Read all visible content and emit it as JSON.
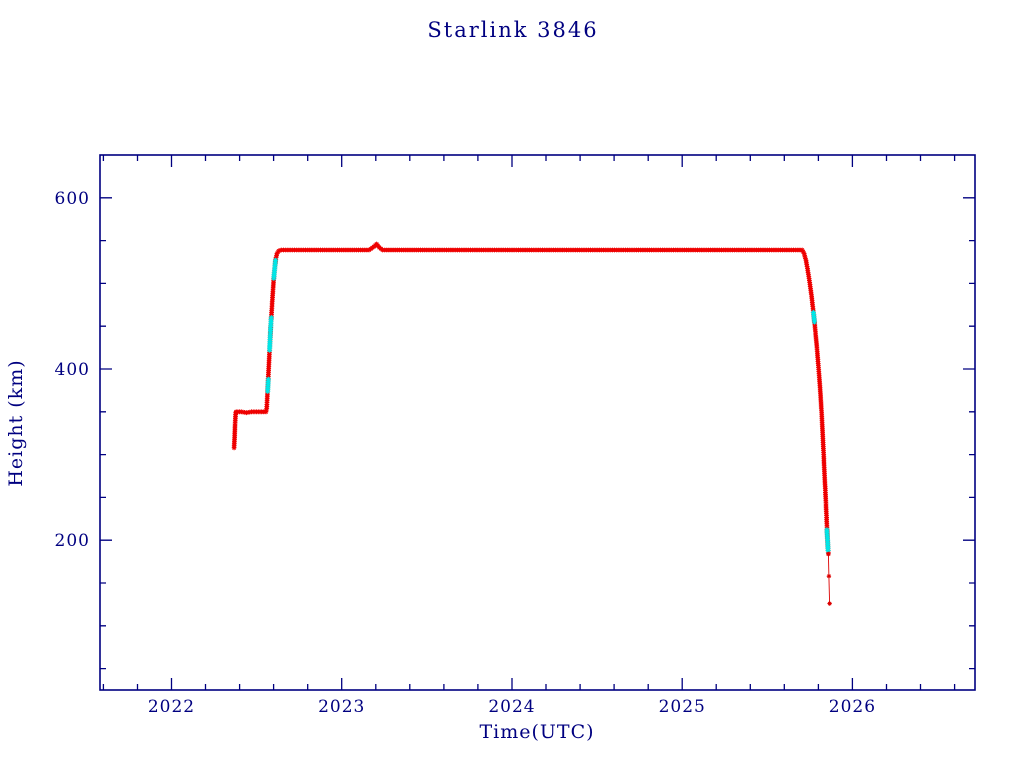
{
  "chart_data": {
    "type": "scatter",
    "title": "Starlink 3846",
    "xlabel": "Time(UTC)",
    "ylabel": "Height (km)",
    "xlim": [
      2021.58,
      2026.72
    ],
    "ylim": [
      25,
      650
    ],
    "xticks": [
      2022,
      2023,
      2024,
      2025,
      2026
    ],
    "x_minor_step": 0.2,
    "yticks": [
      200,
      400,
      600
    ],
    "y_minor_step": 50,
    "grid": false,
    "legend": "none",
    "axis_color": "#000080",
    "background_color": "#ffffff",
    "marker": "asterisk",
    "series": [
      {
        "name": "height-profile-red",
        "color": "#ee0000",
        "draw": "dense",
        "marker_size": 2.4,
        "paths": [
          [
            [
              2022.368,
              308
            ],
            [
              2022.371,
              322
            ],
            [
              2022.374,
              338
            ],
            [
              2022.377,
              349
            ],
            [
              2022.38,
              350
            ],
            [
              2022.41,
              350
            ],
            [
              2022.44,
              349
            ],
            [
              2022.47,
              350
            ],
            [
              2022.5,
              350
            ],
            [
              2022.53,
              350
            ],
            [
              2022.555,
              350
            ],
            [
              2022.559,
              354
            ],
            [
              2022.564,
              372
            ],
            [
              2022.57,
              396
            ],
            [
              2022.576,
              422
            ],
            [
              2022.582,
              446
            ],
            [
              2022.588,
              466
            ],
            [
              2022.594,
              486
            ],
            [
              2022.6,
              503
            ],
            [
              2022.606,
              517
            ],
            [
              2022.612,
              528
            ],
            [
              2022.62,
              535
            ],
            [
              2022.63,
              538
            ],
            [
              2022.645,
              539
            ],
            [
              2022.8,
              539
            ],
            [
              2023.0,
              539
            ],
            [
              2023.16,
              539
            ],
            [
              2023.19,
              543
            ],
            [
              2023.205,
              546
            ],
            [
              2023.22,
              542
            ],
            [
              2023.24,
              539
            ],
            [
              2023.5,
              539
            ],
            [
              2024.0,
              539
            ],
            [
              2024.5,
              539
            ],
            [
              2025.0,
              539
            ],
            [
              2025.5,
              539
            ],
            [
              2025.705,
              539
            ],
            [
              2025.716,
              535
            ],
            [
              2025.727,
              527
            ],
            [
              2025.738,
              515
            ],
            [
              2025.749,
              501
            ],
            [
              2025.76,
              485
            ],
            [
              2025.77,
              468
            ],
            [
              2025.78,
              449
            ],
            [
              2025.79,
              428
            ],
            [
              2025.8,
              404
            ],
            [
              2025.81,
              378
            ],
            [
              2025.818,
              352
            ],
            [
              2025.825,
              326
            ],
            [
              2025.831,
              300
            ],
            [
              2025.836,
              278
            ],
            [
              2025.841,
              258
            ],
            [
              2025.845,
              240
            ],
            [
              2025.849,
              222
            ],
            [
              2025.853,
              204
            ],
            [
              2025.856,
              192
            ],
            [
              2025.859,
              184
            ]
          ]
        ]
      },
      {
        "name": "maneuver-highlight-cyan",
        "color": "#00e6e6",
        "draw": "dense",
        "marker_size": 2.6,
        "paths": [
          [
            [
              2022.565,
              374
            ],
            [
              2022.569,
              388
            ]
          ],
          [
            [
              2022.576,
              422
            ],
            [
              2022.582,
              447
            ],
            [
              2022.586,
              460
            ]
          ],
          [
            [
              2022.601,
              506
            ],
            [
              2022.607,
              519
            ],
            [
              2022.611,
              527
            ]
          ],
          [
            [
              2025.771,
              466
            ],
            [
              2025.777,
              455
            ]
          ],
          [
            [
              2025.85,
              212
            ],
            [
              2025.854,
              200
            ],
            [
              2025.857,
              188
            ]
          ]
        ]
      },
      {
        "name": "final-decay-red",
        "color": "#dd0000",
        "draw": "line+markers",
        "marker_size": 2.2,
        "paths": [
          [
            [
              2025.859,
              184
            ],
            [
              2025.862,
              158
            ],
            [
              2025.866,
              126
            ]
          ]
        ]
      }
    ]
  }
}
